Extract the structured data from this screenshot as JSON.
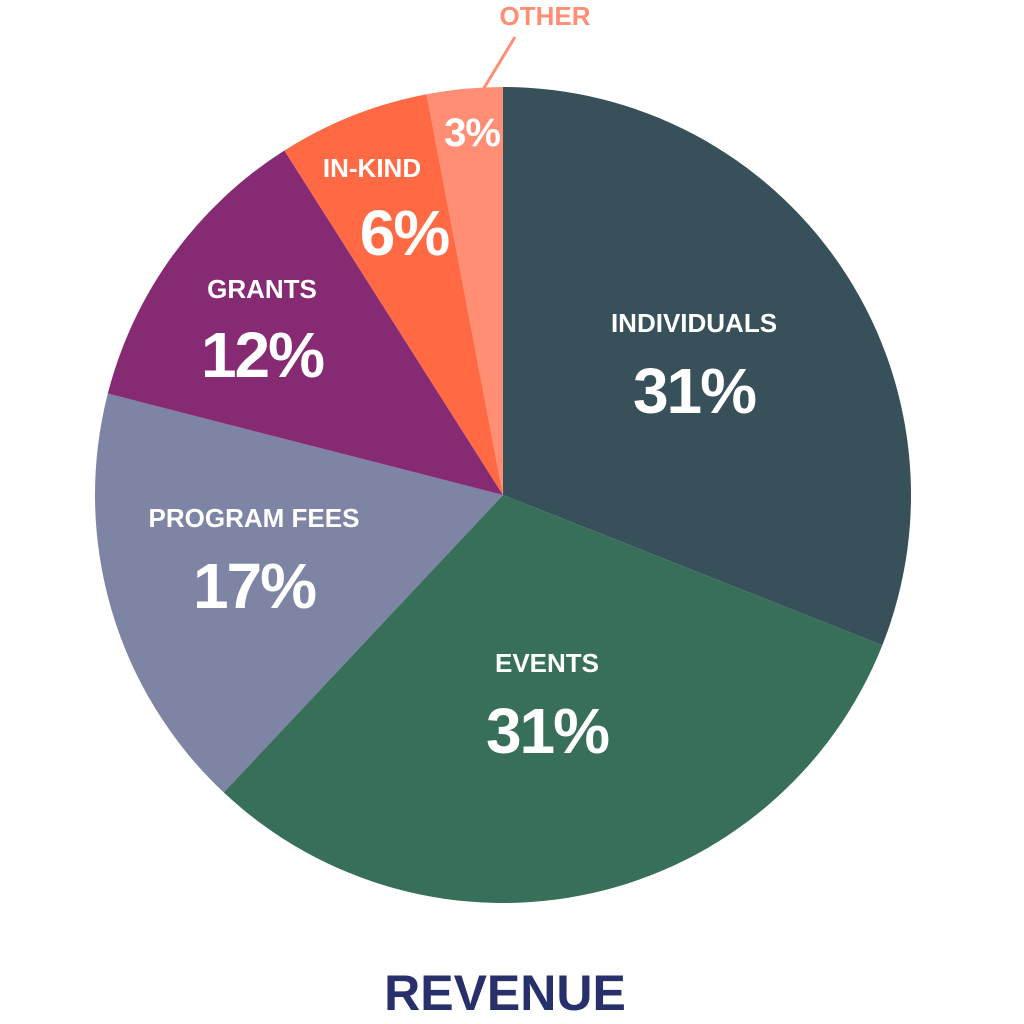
{
  "chart_data": {
    "type": "pie",
    "title": "REVENUE",
    "start": "top",
    "direction": "clockwise",
    "slices": [
      {
        "label": "INDIVIDUALS",
        "value": 31,
        "display": "31%",
        "color": "#37505a"
      },
      {
        "label": "EVENTS",
        "value": 31,
        "display": "31%",
        "color": "#386f59"
      },
      {
        "label": "PROGRAM FEES",
        "value": 17,
        "display": "17%",
        "color": "#7e84a3"
      },
      {
        "label": "GRANTS",
        "value": 12,
        "display": "12%",
        "color": "#862a73"
      },
      {
        "label": "IN-KIND",
        "value": 6,
        "display": "6%",
        "color": "#ff6a45"
      },
      {
        "label": "OTHER",
        "value": 3,
        "display": "3%",
        "color": "#ff8e75"
      }
    ],
    "title_color": "#27306b"
  }
}
